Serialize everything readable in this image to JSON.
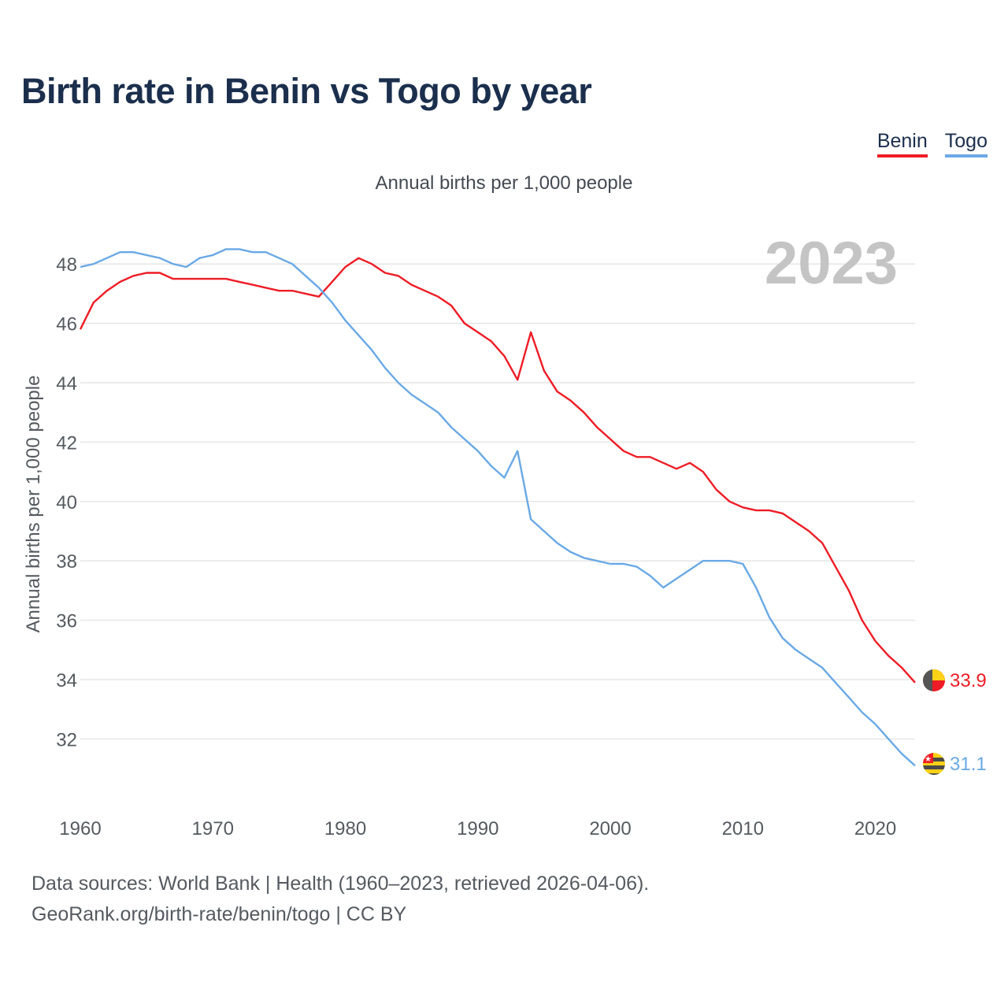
{
  "header": {
    "title": "Birth rate in Benin vs Togo by year"
  },
  "legend": [
    {
      "label": "Benin",
      "color": "#ee1c25"
    },
    {
      "label": "Togo",
      "color": "#6aa9e6"
    }
  ],
  "footer": {
    "sources": "Data sources: World Bank | Health (1960–2023, retrieved 2026-04-06).",
    "credit": "GeoRank.org/birth-rate/benin/togo | CC BY"
  },
  "chart_data": {
    "type": "line",
    "title": "Birth rate in Benin vs Togo by year",
    "subtitle": "Annual births per 1,000 people",
    "ylabel": "Annual births per 1,000 people",
    "xlabel": "",
    "year_label": "2023",
    "xlim": [
      1960,
      2023
    ],
    "ylim": [
      30.1,
      49.2
    ],
    "x_ticks": [
      1960,
      1970,
      1980,
      1990,
      2000,
      2010,
      2020
    ],
    "y_ticks": [
      32,
      34,
      36,
      38,
      40,
      42,
      44,
      46,
      48
    ],
    "grid": true,
    "legend_position": "top-right",
    "x": [
      1960,
      1961,
      1962,
      1963,
      1964,
      1965,
      1966,
      1967,
      1968,
      1969,
      1970,
      1971,
      1972,
      1973,
      1974,
      1975,
      1976,
      1977,
      1978,
      1979,
      1980,
      1981,
      1982,
      1983,
      1984,
      1985,
      1986,
      1987,
      1988,
      1989,
      1990,
      1991,
      1992,
      1993,
      1994,
      1995,
      1996,
      1997,
      1998,
      1999,
      2000,
      2001,
      2002,
      2003,
      2004,
      2005,
      2006,
      2007,
      2008,
      2009,
      2010,
      2011,
      2012,
      2013,
      2014,
      2015,
      2016,
      2017,
      2018,
      2019,
      2020,
      2021,
      2022,
      2023
    ],
    "series": [
      {
        "name": "Benin",
        "color": "#ee1c25",
        "end_label": "33.9",
        "values": [
          45.8,
          46.7,
          47.1,
          47.4,
          47.6,
          47.7,
          47.7,
          47.5,
          47.5,
          47.5,
          47.5,
          47.5,
          47.4,
          47.3,
          47.2,
          47.1,
          47.1,
          47.0,
          46.9,
          47.4,
          47.9,
          48.2,
          48.0,
          47.7,
          47.6,
          47.3,
          47.1,
          46.9,
          46.6,
          46.0,
          45.7,
          45.4,
          44.9,
          44.1,
          45.7,
          44.4,
          43.7,
          43.4,
          43.0,
          42.5,
          42.1,
          41.7,
          41.5,
          41.5,
          41.3,
          41.1,
          41.3,
          41.0,
          40.4,
          40.0,
          39.8,
          39.7,
          39.7,
          39.6,
          39.3,
          39.0,
          38.6,
          37.8,
          37.0,
          36.0,
          35.3,
          34.8,
          34.4,
          33.9
        ]
      },
      {
        "name": "Togo",
        "color": "#6aa9e6",
        "end_label": "31.1",
        "values": [
          47.9,
          48.0,
          48.2,
          48.4,
          48.4,
          48.3,
          48.2,
          48.0,
          47.9,
          48.2,
          48.3,
          48.5,
          48.5,
          48.4,
          48.4,
          48.2,
          48.0,
          47.6,
          47.2,
          46.7,
          46.1,
          45.6,
          45.1,
          44.5,
          44.0,
          43.6,
          43.3,
          43.0,
          42.5,
          42.1,
          41.7,
          41.2,
          40.8,
          41.7,
          39.4,
          39.0,
          38.6,
          38.3,
          38.1,
          38.0,
          37.9,
          37.9,
          37.8,
          37.5,
          37.1,
          37.4,
          37.7,
          38.0,
          38.0,
          38.0,
          37.9,
          37.1,
          36.1,
          35.4,
          35.0,
          34.7,
          34.4,
          33.9,
          33.4,
          32.9,
          32.5,
          32.0,
          31.5,
          31.1
        ]
      }
    ]
  }
}
